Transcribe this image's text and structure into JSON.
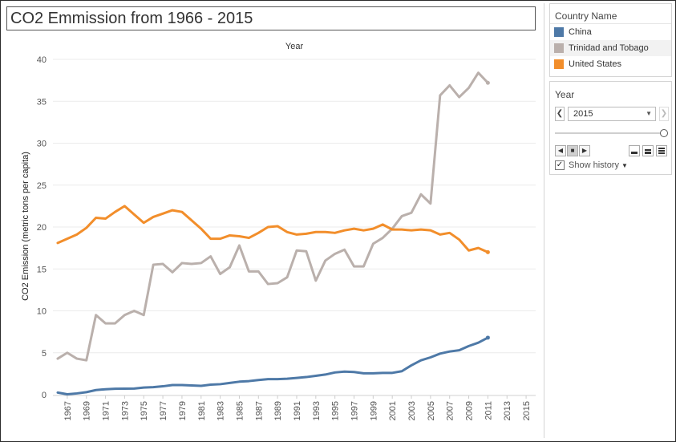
{
  "title": "CO2 Emmission from 1966 - 2015",
  "legend": {
    "header": "Country Name",
    "items": [
      {
        "label": "China",
        "color": "#4e79a7"
      },
      {
        "label": "Trinidad and Tobago",
        "color": "#bab0ac"
      },
      {
        "label": "United States",
        "color": "#f28e2b"
      }
    ]
  },
  "filter": {
    "header": "Year",
    "selected": "2015",
    "show_history": "Show history"
  },
  "chart_data": {
    "type": "line",
    "title": "Year",
    "xlabel": "",
    "ylabel": "CO2 Emission (metric tons per capita)",
    "ylim": [
      0,
      40
    ],
    "xlim": [
      1965.5,
      2016
    ],
    "y_ticks": [
      0,
      5,
      10,
      15,
      20,
      25,
      30,
      35,
      40
    ],
    "x_ticks": [
      1967,
      1969,
      1971,
      1973,
      1975,
      1977,
      1979,
      1981,
      1983,
      1985,
      1987,
      1989,
      1991,
      1993,
      1995,
      1997,
      1999,
      2001,
      2003,
      2005,
      2007,
      2009,
      2011,
      2013,
      2015
    ],
    "grid": "horizontal",
    "x": [
      1966,
      1967,
      1968,
      1969,
      1970,
      1971,
      1972,
      1973,
      1974,
      1975,
      1976,
      1977,
      1978,
      1979,
      1980,
      1981,
      1982,
      1983,
      1984,
      1985,
      1986,
      1987,
      1988,
      1989,
      1990,
      1991,
      1992,
      1993,
      1994,
      1995,
      1996,
      1997,
      1998,
      1999,
      2000,
      2001,
      2002,
      2003,
      2004,
      2005,
      2006,
      2007,
      2008,
      2009,
      2010,
      2011
    ],
    "series": [
      {
        "name": "China",
        "color": "#4e79a7",
        "values": [
          0.25,
          0.05,
          0.15,
          0.3,
          0.55,
          0.65,
          0.7,
          0.72,
          0.73,
          0.85,
          0.9,
          1.0,
          1.15,
          1.15,
          1.1,
          1.05,
          1.2,
          1.25,
          1.4,
          1.55,
          1.62,
          1.75,
          1.85,
          1.85,
          1.9,
          2.0,
          2.1,
          2.25,
          2.4,
          2.65,
          2.75,
          2.7,
          2.55,
          2.55,
          2.6,
          2.6,
          2.8,
          3.5,
          4.1,
          4.45,
          4.9,
          5.15,
          5.3,
          5.8,
          6.2,
          6.8
        ]
      },
      {
        "name": "Trinidad and Tobago",
        "color": "#bab0ac",
        "values": [
          4.3,
          5.0,
          4.3,
          4.1,
          9.5,
          8.5,
          8.5,
          9.5,
          10.0,
          9.5,
          15.5,
          15.6,
          14.6,
          15.7,
          15.6,
          15.7,
          16.5,
          14.4,
          15.2,
          17.8,
          14.7,
          14.7,
          13.2,
          13.3,
          14.0,
          17.2,
          17.1,
          13.6,
          16.0,
          16.8,
          17.3,
          15.3,
          15.3,
          18.0,
          18.7,
          19.8,
          21.3,
          21.7,
          23.9,
          22.8,
          35.7,
          36.9,
          35.5,
          36.6,
          38.4,
          37.2
        ]
      },
      {
        "name": "United States",
        "color": "#f28e2b",
        "values": [
          18.1,
          18.6,
          19.1,
          19.9,
          21.1,
          21.0,
          21.8,
          22.5,
          21.5,
          20.5,
          21.2,
          21.6,
          22.0,
          21.8,
          20.8,
          19.8,
          18.6,
          18.6,
          19.0,
          18.9,
          18.7,
          19.3,
          20.0,
          20.1,
          19.4,
          19.1,
          19.2,
          19.4,
          19.4,
          19.3,
          19.6,
          19.8,
          19.6,
          19.8,
          20.3,
          19.7,
          19.7,
          19.6,
          19.7,
          19.6,
          19.1,
          19.3,
          18.5,
          17.2,
          17.5,
          17.0
        ]
      }
    ]
  }
}
